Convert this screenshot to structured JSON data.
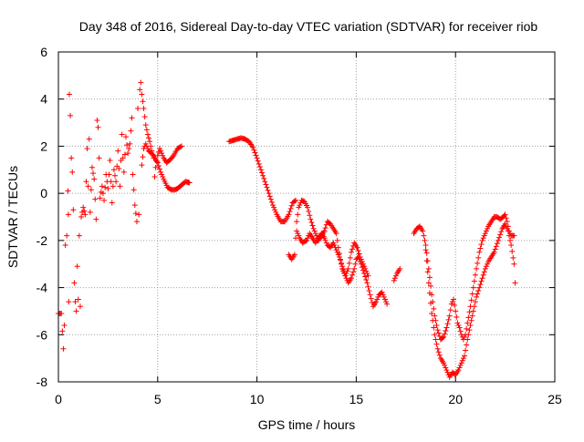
{
  "chart_data": {
    "type": "scatter",
    "title": "Day 348 of 2016, Sidereal Day-to-day VTEC variation (SDTVAR) for receiver riob",
    "xlabel": "GPS time / hours",
    "ylabel": "SDTVAR / TECUs",
    "xlim": [
      0,
      25
    ],
    "ylim": [
      -8,
      6
    ],
    "xticks": [
      0,
      5,
      10,
      15,
      20,
      25
    ],
    "yticks": [
      -8,
      -6,
      -4,
      -2,
      0,
      2,
      4,
      6
    ],
    "grid": true,
    "marker": "+",
    "color": "#ff0000",
    "series": [
      {
        "name": "SDTVAR",
        "segments": [
          [
            [
              0.0,
              -5.1
            ],
            [
              0.15,
              -5.1
            ],
            [
              0.25,
              -6.6
            ],
            [
              0.3,
              -5.6
            ],
            [
              0.35,
              -2.2
            ],
            [
              0.42,
              -1.8
            ],
            [
              0.48,
              0.1
            ],
            [
              0.5,
              -0.9
            ],
            [
              0.52,
              -4.6
            ],
            [
              0.55,
              4.2
            ],
            [
              0.6,
              3.3
            ],
            [
              0.65,
              1.5
            ],
            [
              0.7,
              0.9
            ],
            [
              0.75,
              -0.7
            ],
            [
              0.8,
              -3.8
            ],
            [
              0.85,
              -4.6
            ],
            [
              0.9,
              -5.0
            ],
            [
              0.95,
              -3.1
            ],
            [
              1.0,
              -4.5
            ],
            [
              1.05,
              -1.8
            ],
            [
              1.1,
              -4.8
            ],
            [
              1.15,
              -1.0
            ],
            [
              1.25,
              -0.6
            ],
            [
              1.35,
              -0.9
            ],
            [
              1.45,
              1.9
            ],
            [
              1.5,
              0.3
            ],
            [
              1.55,
              2.3
            ],
            [
              1.6,
              -0.8
            ],
            [
              1.7,
              1.1
            ],
            [
              1.8,
              0.6
            ],
            [
              1.9,
              -1.1
            ],
            [
              1.95,
              3.1
            ],
            [
              2.0,
              2.8
            ],
            [
              2.05,
              1.5
            ],
            [
              2.1,
              -0.2
            ],
            [
              2.2,
              0.3
            ],
            [
              2.3,
              -0.3
            ],
            [
              2.4,
              0.8
            ],
            [
              2.5,
              0.2
            ],
            [
              2.6,
              1.4
            ],
            [
              2.7,
              -0.4
            ],
            [
              2.8,
              1.0
            ],
            [
              2.9,
              0.5
            ],
            [
              3.0,
              1.8
            ],
            [
              3.1,
              0.3
            ],
            [
              3.2,
              2.5
            ],
            [
              3.25,
              1.5
            ],
            [
              3.3,
              0.9
            ],
            [
              3.4,
              2.4
            ],
            [
              3.5,
              1.7
            ],
            [
              3.6,
              2.1
            ],
            [
              3.7,
              3.2
            ],
            [
              3.75,
              0.8
            ],
            [
              3.85,
              -0.5
            ],
            [
              3.95,
              -1.2
            ],
            [
              4.0,
              3.6
            ],
            [
              4.05,
              -0.9
            ],
            [
              4.1,
              4.4
            ],
            [
              4.15,
              4.7
            ],
            [
              4.2,
              4.2
            ],
            [
              4.3,
              3.6
            ],
            [
              4.4,
              2.9
            ],
            [
              4.5,
              2.5
            ],
            [
              4.6,
              2.2
            ],
            [
              4.7,
              1.8
            ],
            [
              4.8,
              1.5
            ],
            [
              4.85,
              0.7
            ],
            [
              4.9,
              1.1
            ],
            [
              5.0,
              1.6
            ],
            [
              5.1,
              1.9
            ],
            [
              5.2,
              1.7
            ],
            [
              5.3,
              1.5
            ],
            [
              5.45,
              1.3
            ],
            [
              5.6,
              1.4
            ],
            [
              5.8,
              1.6
            ],
            [
              6.0,
              1.9
            ],
            [
              6.2,
              2.0
            ]
          ],
          [
            [
              4.2,
              1.2
            ],
            [
              4.3,
              1.9
            ],
            [
              4.4,
              2.1
            ],
            [
              4.55,
              1.8
            ],
            [
              4.7,
              1.7
            ],
            [
              4.85,
              1.5
            ],
            [
              5.0,
              1.3
            ],
            [
              5.15,
              0.9
            ],
            [
              5.3,
              0.6
            ],
            [
              5.5,
              0.25
            ],
            [
              5.7,
              0.15
            ],
            [
              5.85,
              0.15
            ],
            [
              6.0,
              0.2
            ],
            [
              6.2,
              0.35
            ],
            [
              6.4,
              0.5
            ],
            [
              6.6,
              0.45
            ]
          ],
          [
            [
              8.6,
              2.2
            ],
            [
              8.8,
              2.25
            ],
            [
              9.0,
              2.3
            ],
            [
              9.2,
              2.35
            ],
            [
              9.4,
              2.3
            ],
            [
              9.6,
              2.2
            ],
            [
              9.8,
              1.95
            ],
            [
              10.0,
              1.5
            ],
            [
              10.2,
              1.0
            ],
            [
              10.4,
              0.5
            ],
            [
              10.6,
              0.0
            ],
            [
              10.8,
              -0.5
            ],
            [
              11.0,
              -0.9
            ],
            [
              11.2,
              -1.2
            ],
            [
              11.4,
              -1.2
            ],
            [
              11.6,
              -0.9
            ],
            [
              11.8,
              -0.4
            ],
            [
              11.95,
              -0.3
            ]
          ],
          [
            [
              11.6,
              -2.6
            ],
            [
              11.75,
              -2.8
            ],
            [
              11.9,
              -2.6
            ],
            [
              12.0,
              -1.2
            ],
            [
              12.1,
              -0.6
            ],
            [
              12.25,
              -0.3
            ],
            [
              12.4,
              -0.35
            ],
            [
              12.55,
              -0.6
            ],
            [
              12.7,
              -1.1
            ],
            [
              12.85,
              -1.5
            ],
            [
              13.0,
              -1.8
            ],
            [
              13.1,
              -2.0
            ],
            [
              13.25,
              -1.8
            ],
            [
              13.4,
              -1.6
            ],
            [
              13.55,
              -1.2
            ],
            [
              13.7,
              -1.3
            ],
            [
              13.85,
              -1.5
            ],
            [
              14.0,
              -1.7
            ],
            [
              14.1,
              -2.3
            ],
            [
              14.2,
              -2.8
            ],
            [
              14.3,
              -3.2
            ],
            [
              14.45,
              -3.5
            ],
            [
              14.6,
              -3.2
            ],
            [
              14.75,
              -2.5
            ],
            [
              14.9,
              -2.1
            ],
            [
              15.05,
              -2.3
            ],
            [
              15.2,
              -2.7
            ],
            [
              15.35,
              -3.0
            ],
            [
              15.5,
              -3.3
            ],
            [
              15.6,
              -3.5
            ]
          ],
          [
            [
              12.0,
              -1.6
            ],
            [
              12.15,
              -1.9
            ],
            [
              12.3,
              -2.1
            ],
            [
              12.5,
              -2.0
            ],
            [
              12.65,
              -1.7
            ],
            [
              12.8,
              -1.9
            ],
            [
              12.95,
              -2.1
            ],
            [
              13.1,
              -1.9
            ],
            [
              13.25,
              -1.7
            ],
            [
              13.4,
              -1.9
            ],
            [
              13.55,
              -2.2
            ],
            [
              13.7,
              -2.3
            ],
            [
              13.85,
              -2.1
            ],
            [
              14.0,
              -2.4
            ],
            [
              14.15,
              -2.7
            ],
            [
              14.3,
              -3.1
            ],
            [
              14.45,
              -3.5
            ],
            [
              14.6,
              -3.8
            ],
            [
              14.75,
              -3.6
            ],
            [
              14.9,
              -3.2
            ],
            [
              15.0,
              -2.8
            ],
            [
              15.1,
              -2.7
            ],
            [
              15.25,
              -3.0
            ],
            [
              15.4,
              -3.4
            ],
            [
              15.55,
              -3.8
            ],
            [
              15.7,
              -4.3
            ],
            [
              15.85,
              -4.8
            ],
            [
              16.0,
              -4.6
            ],
            [
              16.15,
              -4.3
            ],
            [
              16.3,
              -4.2
            ],
            [
              16.45,
              -4.5
            ],
            [
              16.55,
              -4.7
            ]
          ],
          [
            [
              16.9,
              -3.7
            ],
            [
              17.05,
              -3.4
            ],
            [
              17.2,
              -3.2
            ]
          ],
          [
            [
              17.9,
              -1.7
            ],
            [
              18.05,
              -1.5
            ],
            [
              18.2,
              -1.4
            ],
            [
              18.35,
              -1.6
            ],
            [
              18.5,
              -2.2
            ],
            [
              18.65,
              -3.2
            ],
            [
              18.8,
              -4.3
            ],
            [
              18.95,
              -5.2
            ],
            [
              19.1,
              -5.8
            ],
            [
              19.25,
              -6.2
            ],
            [
              19.4,
              -6.1
            ],
            [
              19.55,
              -5.7
            ],
            [
              19.7,
              -5.2
            ],
            [
              19.8,
              -4.7
            ],
            [
              19.9,
              -4.5
            ],
            [
              20.0,
              -5.0
            ],
            [
              20.1,
              -5.5
            ],
            [
              20.2,
              -5.7
            ],
            [
              20.3,
              -6.0
            ],
            [
              20.4,
              -6.2
            ],
            [
              20.5,
              -6.0
            ],
            [
              20.6,
              -5.5
            ],
            [
              20.75,
              -4.8
            ],
            [
              20.9,
              -4.0
            ],
            [
              21.05,
              -3.2
            ],
            [
              21.2,
              -2.5
            ],
            [
              21.35,
              -2.0
            ],
            [
              21.5,
              -1.7
            ],
            [
              21.65,
              -1.4
            ],
            [
              21.8,
              -1.2
            ],
            [
              21.95,
              -1.0
            ],
            [
              22.1,
              -1.0
            ],
            [
              22.25,
              -1.1
            ],
            [
              22.4,
              -1.0
            ],
            [
              22.5,
              -0.9
            ],
            [
              22.6,
              -1.2
            ],
            [
              22.7,
              -1.6
            ],
            [
              22.8,
              -1.8
            ],
            [
              22.95,
              -1.8
            ]
          ],
          [
            [
              18.5,
              -2.4
            ],
            [
              18.65,
              -3.8
            ],
            [
              18.8,
              -5.1
            ],
            [
              18.95,
              -6.0
            ],
            [
              19.1,
              -6.6
            ],
            [
              19.25,
              -7.0
            ],
            [
              19.4,
              -7.2
            ],
            [
              19.55,
              -7.5
            ],
            [
              19.7,
              -7.8
            ],
            [
              19.85,
              -7.6
            ],
            [
              20.0,
              -7.7
            ],
            [
              20.15,
              -7.5
            ],
            [
              20.3,
              -7.2
            ],
            [
              20.45,
              -6.9
            ],
            [
              20.6,
              -6.2
            ],
            [
              20.75,
              -5.6
            ],
            [
              20.9,
              -5.0
            ],
            [
              21.05,
              -4.4
            ],
            [
              21.2,
              -4.0
            ],
            [
              21.35,
              -3.6
            ],
            [
              21.5,
              -3.2
            ],
            [
              21.65,
              -2.9
            ],
            [
              21.8,
              -2.7
            ],
            [
              21.95,
              -2.5
            ],
            [
              22.15,
              -2.0
            ],
            [
              22.35,
              -1.5
            ],
            [
              22.5,
              -1.3
            ],
            [
              22.65,
              -1.6
            ],
            [
              22.8,
              -2.2
            ],
            [
              22.95,
              -3.0
            ],
            [
              23.0,
              -3.8
            ]
          ]
        ]
      }
    ]
  }
}
